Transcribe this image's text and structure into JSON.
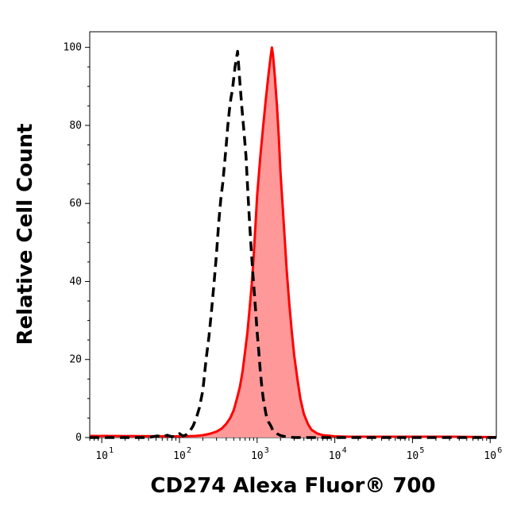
{
  "chart_data": {
    "type": "area",
    "title": "",
    "xlabel": "CD274 Alexa Fluor® 700",
    "ylabel": "Relative Cell Count",
    "x_scale": "log",
    "xlim": [
      7,
      1200000
    ],
    "ylim": [
      0,
      104
    ],
    "x_tick_base": "10",
    "x_ticks": [
      {
        "value": 10,
        "exp": "1"
      },
      {
        "value": 100,
        "exp": "2"
      },
      {
        "value": 1000,
        "exp": "3"
      },
      {
        "value": 10000,
        "exp": "4"
      },
      {
        "value": 100000,
        "exp": "5"
      },
      {
        "value": 1000000,
        "exp": "6"
      }
    ],
    "y_ticks": [
      0,
      20,
      40,
      60,
      80,
      100
    ],
    "grid": false,
    "legend": null,
    "series": [
      {
        "style": "dashed",
        "color": "#000000",
        "fill": "none",
        "x": [
          7,
          40,
          52,
          60,
          70,
          80,
          90,
          100,
          110,
          120,
          135,
          150,
          165,
          180,
          200,
          220,
          240,
          260,
          280,
          300,
          320,
          340,
          360,
          380,
          400,
          420,
          440,
          460,
          480,
          500,
          520,
          540,
          560,
          600,
          640,
          680,
          720,
          760,
          800,
          840,
          880,
          920,
          960,
          1000,
          1050,
          1100,
          1150,
          1200,
          1300,
          1400,
          1500,
          1600,
          1800,
          2000,
          2200,
          2400,
          2700,
          3000,
          3500,
          4000,
          1200000
        ],
        "y": [
          0,
          0,
          0.4,
          0.2,
          0.6,
          0.2,
          0.3,
          1.0,
          0.4,
          0.6,
          1.5,
          3.0,
          5.0,
          7.5,
          12,
          20,
          26,
          33,
          40,
          47,
          55,
          61,
          65,
          70,
          75,
          80,
          84,
          87,
          89,
          92,
          95,
          97,
          99,
          91,
          84,
          78,
          72,
          63,
          55,
          48,
          42,
          37,
          32,
          27,
          22,
          17,
          13,
          10,
          6,
          4,
          3,
          1.8,
          1.0,
          0.5,
          0.3,
          0.2,
          0.1,
          0,
          0,
          0,
          0
        ]
      },
      {
        "style": "solid",
        "color": "#ff0000",
        "fill": "#ff9999",
        "x": [
          7,
          100,
          160,
          200,
          250,
          300,
          350,
          400,
          450,
          500,
          550,
          600,
          650,
          700,
          750,
          800,
          850,
          900,
          950,
          1000,
          1100,
          1200,
          1300,
          1400,
          1500,
          1550,
          1600,
          1650,
          1700,
          1800,
          1900,
          2000,
          2200,
          2400,
          2600,
          2800,
          3000,
          3300,
          3600,
          4000,
          4500,
          5000,
          6000,
          7000,
          8000,
          10000,
          15000,
          30000,
          100000,
          300000,
          1200000
        ],
        "y": [
          0.4,
          0.3,
          0.4,
          0.6,
          1.0,
          1.5,
          2.3,
          3.5,
          5,
          7,
          10,
          13,
          17,
          22,
          27,
          33,
          39,
          46,
          54,
          62,
          72,
          80,
          87,
          93,
          98,
          100,
          98,
          95,
          92,
          85,
          77,
          68,
          55,
          43,
          34,
          27,
          21,
          15,
          10,
          6,
          3.5,
          2,
          1,
          0.6,
          0.5,
          0.3,
          0.2,
          0.2,
          0.2,
          0.2,
          0.1
        ]
      }
    ]
  }
}
